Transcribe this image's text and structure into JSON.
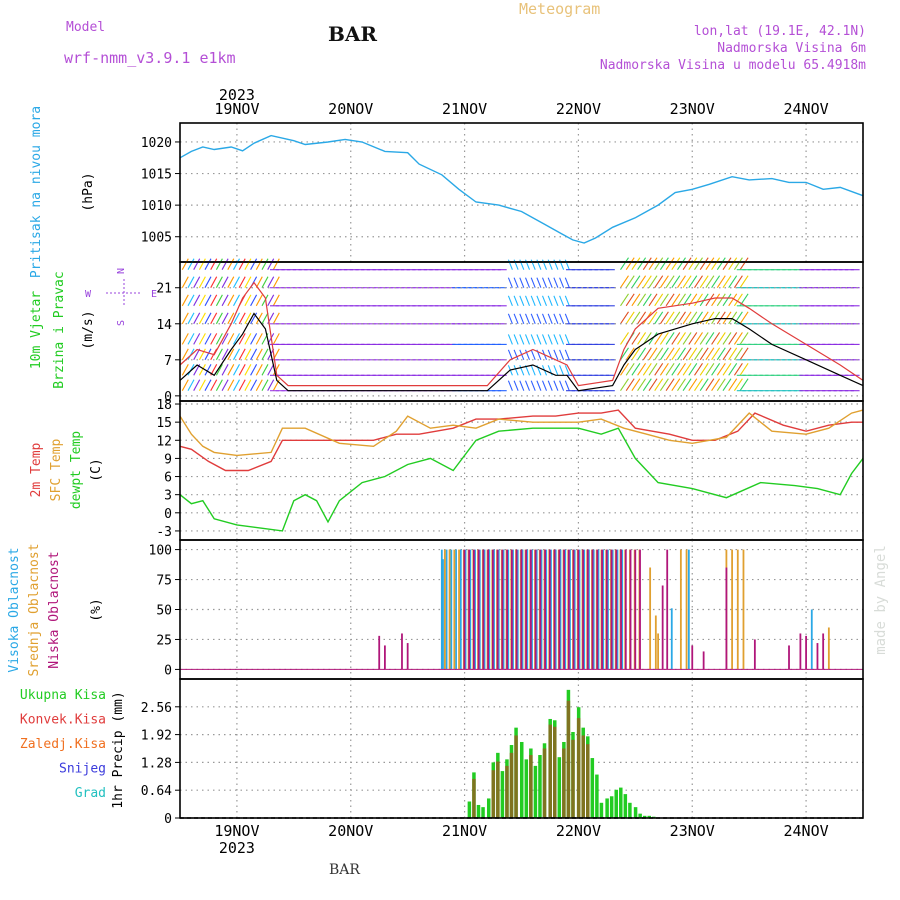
{
  "header": {
    "model_label": "Model",
    "model_name": "wrf-nmm_v3.9.1 e1km",
    "title": "BAR",
    "meteogram_label": "Meteogram",
    "coords": "lon,lat (19.1E, 42.1N)",
    "altitude": "Nadmorska Visina 6m",
    "model_altitude": "Nadmorska Visina u modelu 65.4918m",
    "footer_station": "BAR",
    "watermark": "made by Angel"
  },
  "colors": {
    "header_purple": "#b44fd6",
    "meteogram_orange": "#e8c27a",
    "pressure": "#2aa8e6",
    "temp2m": "#e03c3c",
    "sfc_temp": "#e0a030",
    "dewpt": "#22cc22",
    "high_cloud": "#2aa8e6",
    "mid_cloud": "#e0a030",
    "low_cloud": "#b0167a",
    "total_precip": "#22cc22",
    "conv_precip": "#e03c3c",
    "freezing": "#f07020",
    "snow": "#3b3bdc",
    "hail": "#22c0c0",
    "grid": "#999999"
  },
  "chart_data": [
    {
      "type": "line",
      "panel": "pressure",
      "y_title": "Pritisak na nivou mora",
      "unit": "(hPa)",
      "x_ticks": [
        "19NOV",
        "20NOV",
        "21NOV",
        "22NOV",
        "23NOV",
        "24NOV"
      ],
      "top_year": "2023",
      "ylim": [
        1001,
        1023
      ],
      "yticks": [
        1005,
        1010,
        1015,
        1020
      ],
      "grid": true,
      "series": [
        {
          "x": [
            18.5,
            18.6,
            18.7,
            18.8,
            18.95,
            19.05,
            19.15,
            19.3,
            19.5,
            19.6,
            19.8,
            19.95,
            20.1,
            20.3,
            20.5,
            20.6,
            20.8,
            20.95,
            21.1,
            21.3,
            21.5,
            21.7,
            21.85,
            21.95,
            22.05,
            22.15,
            22.3,
            22.5,
            22.7,
            22.85,
            23.0,
            23.15,
            23.35,
            23.5,
            23.7,
            23.85,
            24.0,
            24.15,
            24.3,
            24.5
          ],
          "y": [
            1017.5,
            1018.5,
            1019.2,
            1018.8,
            1019.2,
            1018.6,
            1019.8,
            1021.0,
            1020.2,
            1019.6,
            1020.0,
            1020.4,
            1020.0,
            1018.5,
            1018.3,
            1016.5,
            1014.8,
            1012.5,
            1010.5,
            1010.0,
            1009.0,
            1007.0,
            1005.5,
            1004.5,
            1004.0,
            1004.8,
            1006.5,
            1008.0,
            1010.0,
            1012.0,
            1012.5,
            1013.3,
            1014.5,
            1014.0,
            1014.2,
            1013.6,
            1013.6,
            1012.5,
            1012.8,
            1011.5
          ]
        }
      ]
    },
    {
      "type": "line",
      "panel": "wind",
      "y_title_1": "10m Vjetar",
      "y_title_2": "Brzina i Pravac",
      "unit": "(m/s)",
      "compass": [
        "N",
        "W",
        "E",
        "S"
      ],
      "ylim": [
        -1,
        26
      ],
      "yticks": [
        0,
        7,
        14,
        21
      ],
      "series": [
        {
          "name": "speed",
          "x": [
            18.5,
            18.65,
            18.8,
            18.95,
            19.05,
            19.15,
            19.25,
            19.35,
            19.45,
            19.7,
            20.0,
            20.5,
            20.9,
            21.2,
            21.4,
            21.6,
            21.8,
            21.9,
            22.0,
            22.3,
            22.4,
            22.5,
            22.7,
            23.0,
            23.2,
            23.35,
            23.5,
            23.7,
            24.0,
            24.3,
            24.5
          ],
          "y": [
            3,
            6,
            4,
            9,
            12,
            16,
            13,
            3,
            1,
            1,
            1,
            1,
            1,
            1,
            5,
            6,
            4,
            4,
            1,
            2,
            6,
            9,
            12,
            14,
            15,
            15,
            13,
            10,
            7,
            4,
            2
          ]
        },
        {
          "name": "gust",
          "x": [
            18.5,
            18.65,
            18.8,
            18.95,
            19.05,
            19.15,
            19.25,
            19.35,
            19.45,
            19.7,
            20.0,
            20.5,
            20.9,
            21.2,
            21.4,
            21.6,
            21.8,
            21.9,
            22.0,
            22.3,
            22.4,
            22.5,
            22.7,
            23.0,
            23.2,
            23.35,
            23.5,
            23.7,
            24.0,
            24.3,
            24.5
          ],
          "y": [
            6,
            9,
            8,
            14,
            19,
            22,
            19,
            4,
            2,
            2,
            2,
            2,
            2,
            2,
            7,
            9,
            7,
            6,
            2,
            3,
            9,
            13,
            17,
            18,
            19,
            19,
            17,
            14,
            10,
            6,
            3
          ]
        }
      ]
    },
    {
      "type": "line",
      "panel": "temperature",
      "y_title_1": "2m Temp",
      "y_title_2": "SFC Temp",
      "y_title_3": "dewpt Temp",
      "unit": "(C)",
      "ylim": [
        -4.5,
        18.5
      ],
      "yticks": [
        -3,
        0,
        3,
        6,
        9,
        12,
        15,
        18
      ],
      "series": [
        {
          "name": "2m Temp",
          "x": [
            18.5,
            18.6,
            18.75,
            18.9,
            19.1,
            19.3,
            19.4,
            19.6,
            19.9,
            20.2,
            20.4,
            20.6,
            20.9,
            21.1,
            21.3,
            21.6,
            21.8,
            22.0,
            22.2,
            22.35,
            22.5,
            22.8,
            23.0,
            23.2,
            23.4,
            23.55,
            23.8,
            24.0,
            24.2,
            24.4,
            24.5
          ],
          "y": [
            11.0,
            10.5,
            8.5,
            7.0,
            7.0,
            8.5,
            12.0,
            12.0,
            12.0,
            12.0,
            13.0,
            13.0,
            14.0,
            15.5,
            15.5,
            16.0,
            16.0,
            16.5,
            16.5,
            17.0,
            14.0,
            13.0,
            12.0,
            12.0,
            13.5,
            16.5,
            14.5,
            13.5,
            14.5,
            15.0,
            15.0
          ]
        },
        {
          "name": "SFC Temp",
          "x": [
            18.5,
            18.6,
            18.7,
            18.8,
            19.0,
            19.3,
            19.4,
            19.6,
            19.9,
            20.2,
            20.4,
            20.5,
            20.7,
            20.9,
            21.1,
            21.3,
            21.6,
            21.8,
            22.0,
            22.2,
            22.4,
            22.6,
            22.8,
            23.0,
            23.3,
            23.5,
            23.7,
            24.0,
            24.2,
            24.4,
            24.5
          ],
          "y": [
            16.0,
            13.0,
            11.0,
            10.0,
            9.5,
            10.0,
            14.0,
            14.0,
            11.5,
            11.0,
            13.5,
            16.0,
            14.0,
            14.5,
            14.0,
            15.5,
            15.0,
            15.0,
            15.0,
            15.5,
            14.0,
            13.0,
            12.0,
            11.5,
            12.5,
            16.5,
            13.5,
            13.0,
            14.0,
            16.5,
            17.0
          ]
        },
        {
          "name": "dewpt Temp",
          "x": [
            18.5,
            18.6,
            18.7,
            18.8,
            19.0,
            19.2,
            19.4,
            19.5,
            19.6,
            19.7,
            19.8,
            19.9,
            20.1,
            20.3,
            20.5,
            20.7,
            20.9,
            21.1,
            21.3,
            21.6,
            21.8,
            22.0,
            22.2,
            22.35,
            22.5,
            22.7,
            23.0,
            23.3,
            23.6,
            23.9,
            24.1,
            24.3,
            24.4,
            24.5
          ],
          "y": [
            3.0,
            1.5,
            2.0,
            -1.0,
            -2.0,
            -2.5,
            -3.0,
            2.0,
            3.0,
            2.0,
            -1.5,
            2.0,
            5.0,
            6.0,
            8.0,
            9.0,
            7.0,
            12.0,
            13.5,
            14.0,
            14.0,
            14.0,
            13.0,
            14.0,
            9.0,
            5.0,
            4.0,
            2.5,
            5.0,
            4.5,
            4.0,
            3.0,
            6.5,
            9.0
          ]
        }
      ]
    },
    {
      "type": "bar",
      "panel": "cloud",
      "y_title_1": "Visoka Oblacnost",
      "y_title_2": "Srednja Oblacnost",
      "y_title_3": "Niska Oblacnost",
      "unit": "(%)",
      "ylim": [
        -8,
        108
      ],
      "yticks": [
        0,
        25,
        50,
        75,
        100
      ],
      "bands": [
        {
          "name": "High",
          "from": 20.8,
          "to": 22.4,
          "level": 100
        },
        {
          "name": "Mid",
          "from": 20.8,
          "to": 22.55,
          "level": 100
        },
        {
          "name": "Low",
          "from": 20.95,
          "to": 22.5,
          "level": 100
        }
      ],
      "series": [
        {
          "name": "High",
          "x": [
            20.81,
            22.82,
            22.97,
            24.05
          ],
          "y": [
            92,
            51,
            100,
            50
          ]
        },
        {
          "name": "Mid",
          "x": [
            22.63,
            22.68,
            22.7,
            22.9,
            22.95,
            23.3,
            23.35,
            23.4,
            23.45,
            24.2
          ],
          "y": [
            85,
            45,
            30,
            100,
            100,
            100,
            100,
            100,
            100,
            35
          ]
        },
        {
          "name": "Low",
          "x": [
            20.25,
            20.3,
            20.45,
            20.5,
            22.74,
            22.78,
            23.0,
            23.1,
            23.3,
            23.55,
            23.85,
            23.95,
            24.0,
            24.1,
            24.15
          ],
          "y": [
            28,
            20,
            30,
            22,
            70,
            100,
            20,
            15,
            85,
            25,
            20,
            30,
            28,
            22,
            30
          ]
        }
      ]
    },
    {
      "type": "bar",
      "panel": "precip",
      "legend": [
        "Ukupna Kisa",
        "Konvek.Kisa",
        "Zaledj.Kisa",
        "Snijeg",
        "Grad"
      ],
      "y_title": "1hr Precip (mm)",
      "ylim": [
        0,
        3.2
      ],
      "yticks": [
        0,
        0.64,
        1.28,
        1.92,
        2.56
      ],
      "x_ticks": [
        "19NOV",
        "20NOV",
        "21NOV",
        "22NOV",
        "23NOV",
        "24NOV"
      ],
      "bottom_year": "2023",
      "series": [
        {
          "name": "Ukupna Kisa",
          "x": [
            21.04,
            21.08,
            21.12,
            21.16,
            21.21,
            21.25,
            21.29,
            21.33,
            21.37,
            21.41,
            21.45,
            21.5,
            21.54,
            21.58,
            21.62,
            21.66,
            21.7,
            21.75,
            21.79,
            21.83,
            21.87,
            21.91,
            21.95,
            22.0,
            22.04,
            22.08,
            22.12,
            22.16,
            22.2,
            22.25,
            22.29,
            22.33,
            22.37,
            22.41,
            22.45,
            22.5,
            22.54,
            22.58,
            22.62,
            22.66
          ],
          "y": [
            0.38,
            1.05,
            0.3,
            0.25,
            0.45,
            1.28,
            1.5,
            1.08,
            1.35,
            1.68,
            2.08,
            1.75,
            1.35,
            1.6,
            1.2,
            1.45,
            1.72,
            2.28,
            2.25,
            1.4,
            1.75,
            2.95,
            1.98,
            2.55,
            2.08,
            1.88,
            1.38,
            1.0,
            0.35,
            0.45,
            0.5,
            0.65,
            0.7,
            0.55,
            0.35,
            0.25,
            0.1,
            0.05,
            0.05,
            0.03
          ]
        },
        {
          "name": "Konvek.Kisa",
          "x": [
            21.08,
            21.25,
            21.29,
            21.37,
            21.41,
            21.45,
            21.58,
            21.7,
            21.75,
            21.79,
            21.87,
            21.91,
            21.95,
            22.0,
            22.04,
            22.08
          ],
          "y": [
            0.9,
            1.1,
            1.3,
            1.2,
            1.5,
            1.9,
            1.45,
            1.6,
            2.15,
            2.1,
            1.6,
            2.7,
            1.8,
            2.3,
            1.9,
            1.7
          ]
        }
      ]
    }
  ]
}
